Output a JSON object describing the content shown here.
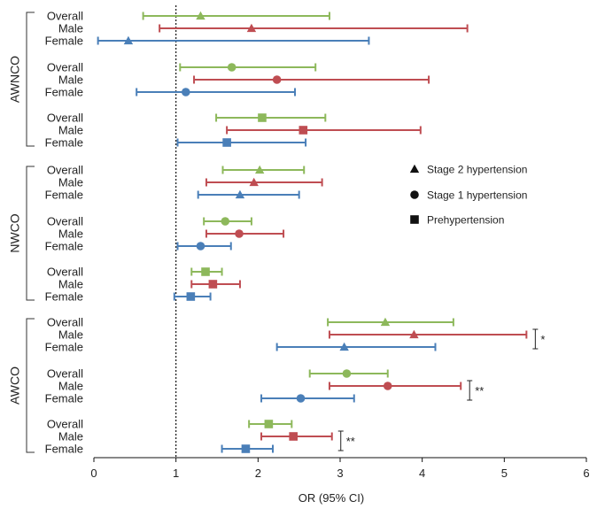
{
  "chart_data": {
    "type": "forest",
    "xlabel": "OR (95% CI)",
    "xlim": [
      0,
      6
    ],
    "x_ticks": [
      0,
      1,
      2,
      3,
      4,
      5,
      6
    ],
    "reference_line": 1,
    "colors": {
      "Overall": "#8db85b",
      "Male": "#bf4d52",
      "Female": "#4a7fb8"
    },
    "legend": [
      {
        "marker": "triangle",
        "label": "Stage 2 hypertension"
      },
      {
        "marker": "circle",
        "label": "Stage 1 hypertension"
      },
      {
        "marker": "square",
        "label": "Prehypertension"
      }
    ],
    "groups": [
      {
        "name": "AWNCO",
        "blocks": [
          {
            "marker": "triangle",
            "rows": [
              {
                "label": "Overall",
                "or": 1.3,
                "lo": 0.6,
                "hi": 2.87
              },
              {
                "label": "Male",
                "or": 1.92,
                "lo": 0.8,
                "hi": 4.55
              },
              {
                "label": "Female",
                "or": 0.42,
                "lo": 0.05,
                "hi": 3.35
              }
            ]
          },
          {
            "marker": "circle",
            "rows": [
              {
                "label": "Overall",
                "or": 1.68,
                "lo": 1.05,
                "hi": 2.7
              },
              {
                "label": "Male",
                "or": 2.23,
                "lo": 1.22,
                "hi": 4.08
              },
              {
                "label": "Female",
                "or": 1.12,
                "lo": 0.52,
                "hi": 2.45
              }
            ]
          },
          {
            "marker": "square",
            "rows": [
              {
                "label": "Overall",
                "or": 2.05,
                "lo": 1.49,
                "hi": 2.82
              },
              {
                "label": "Male",
                "or": 2.55,
                "lo": 1.62,
                "hi": 3.98
              },
              {
                "label": "Female",
                "or": 1.62,
                "lo": 1.02,
                "hi": 2.58
              }
            ]
          }
        ]
      },
      {
        "name": "NWCO",
        "blocks": [
          {
            "marker": "triangle",
            "rows": [
              {
                "label": "Overall",
                "or": 2.02,
                "lo": 1.57,
                "hi": 2.56
              },
              {
                "label": "Male",
                "or": 1.95,
                "lo": 1.37,
                "hi": 2.78
              },
              {
                "label": "Female",
                "or": 1.78,
                "lo": 1.27,
                "hi": 2.5
              }
            ]
          },
          {
            "marker": "circle",
            "rows": [
              {
                "label": "Overall",
                "or": 1.6,
                "lo": 1.34,
                "hi": 1.92
              },
              {
                "label": "Male",
                "or": 1.77,
                "lo": 1.37,
                "hi": 2.31
              },
              {
                "label": "Female",
                "or": 1.3,
                "lo": 1.02,
                "hi": 1.67
              }
            ]
          },
          {
            "marker": "square",
            "rows": [
              {
                "label": "Overall",
                "or": 1.36,
                "lo": 1.19,
                "hi": 1.56
              },
              {
                "label": "Male",
                "or": 1.45,
                "lo": 1.19,
                "hi": 1.78
              },
              {
                "label": "Female",
                "or": 1.18,
                "lo": 0.98,
                "hi": 1.42
              }
            ]
          }
        ]
      },
      {
        "name": "AWCO",
        "blocks": [
          {
            "marker": "triangle",
            "sig": "*",
            "rows": [
              {
                "label": "Overall",
                "or": 3.55,
                "lo": 2.85,
                "hi": 4.38
              },
              {
                "label": "Male",
                "or": 3.9,
                "lo": 2.87,
                "hi": 5.27
              },
              {
                "label": "Female",
                "or": 3.05,
                "lo": 2.23,
                "hi": 4.16
              }
            ]
          },
          {
            "marker": "circle",
            "sig": "**",
            "rows": [
              {
                "label": "Overall",
                "or": 3.08,
                "lo": 2.63,
                "hi": 3.58
              },
              {
                "label": "Male",
                "or": 3.58,
                "lo": 2.87,
                "hi": 4.47
              },
              {
                "label": "Female",
                "or": 2.52,
                "lo": 2.04,
                "hi": 3.17
              }
            ]
          },
          {
            "marker": "square",
            "sig": "**",
            "rows": [
              {
                "label": "Overall",
                "or": 2.13,
                "lo": 1.89,
                "hi": 2.41
              },
              {
                "label": "Male",
                "or": 2.43,
                "lo": 2.04,
                "hi": 2.9
              },
              {
                "label": "Female",
                "or": 1.85,
                "lo": 1.56,
                "hi": 2.18
              }
            ]
          }
        ]
      }
    ]
  }
}
